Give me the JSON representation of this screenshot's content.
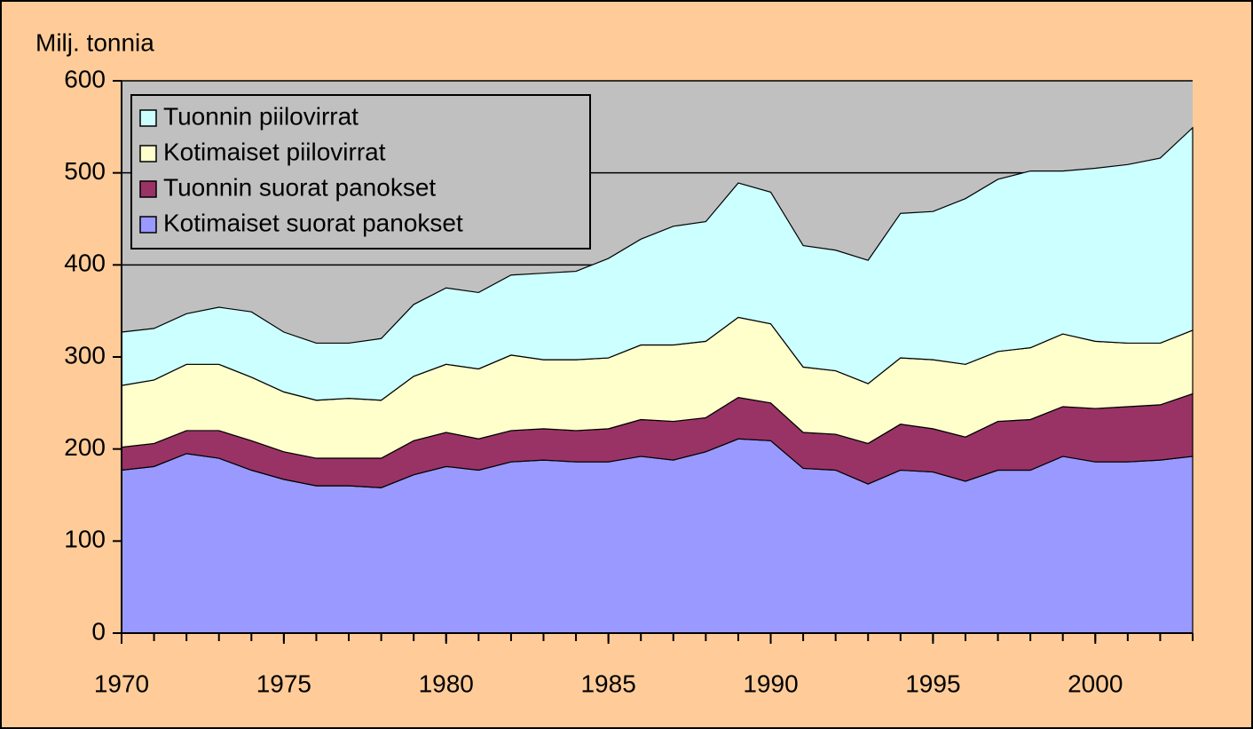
{
  "chart_data": {
    "type": "stacked_area",
    "y_label": "Milj. tonnia",
    "x": [
      1970,
      1971,
      1972,
      1973,
      1974,
      1975,
      1976,
      1977,
      1978,
      1979,
      1980,
      1981,
      1982,
      1983,
      1984,
      1985,
      1986,
      1987,
      1988,
      1989,
      1990,
      1991,
      1992,
      1993,
      1994,
      1995,
      1996,
      1997,
      1998,
      1999,
      2000,
      2001,
      2002,
      2003
    ],
    "series": [
      {
        "name": "Kotimaiset suorat panokset",
        "color": "#9999ff",
        "values": [
          177,
          181,
          195,
          190,
          177,
          167,
          160,
          160,
          158,
          172,
          181,
          177,
          186,
          188,
          186,
          186,
          192,
          188,
          197,
          211,
          209,
          179,
          177,
          162,
          177,
          175,
          165,
          177,
          177,
          192,
          186,
          186,
          188,
          192
        ]
      },
      {
        "name": "Tuonnin suorat panokset",
        "color": "#993366",
        "values": [
          25,
          25,
          25,
          30,
          32,
          30,
          30,
          30,
          32,
          37,
          37,
          34,
          34,
          34,
          34,
          36,
          40,
          42,
          37,
          45,
          41,
          39,
          39,
          44,
          50,
          47,
          48,
          53,
          55,
          54,
          58,
          60,
          60,
          68
        ]
      },
      {
        "name": "Kotimaiset piilovirrat",
        "color": "#ffffcc",
        "values": [
          67,
          69,
          72,
          72,
          69,
          65,
          63,
          65,
          63,
          70,
          74,
          76,
          82,
          75,
          77,
          77,
          81,
          83,
          83,
          87,
          86,
          71,
          69,
          65,
          72,
          75,
          79,
          76,
          78,
          79,
          73,
          69,
          67,
          69
        ]
      },
      {
        "name": "Tuonnin piilovirrat",
        "color": "#ccffff",
        "values": [
          58,
          56,
          55,
          62,
          71,
          65,
          62,
          60,
          67,
          78,
          83,
          83,
          87,
          94,
          96,
          108,
          115,
          129,
          130,
          146,
          143,
          132,
          131,
          134,
          157,
          161,
          180,
          187,
          192,
          177,
          188,
          194,
          201,
          220
        ]
      }
    ],
    "xlim": [
      1970,
      2003
    ],
    "xticks": [
      1970,
      1975,
      1980,
      1985,
      1990,
      1995,
      2000
    ],
    "ylim": [
      0,
      600
    ],
    "yticks": [
      0,
      100,
      200,
      300,
      400,
      500,
      600
    ],
    "grid": true,
    "legend": "upper left"
  }
}
